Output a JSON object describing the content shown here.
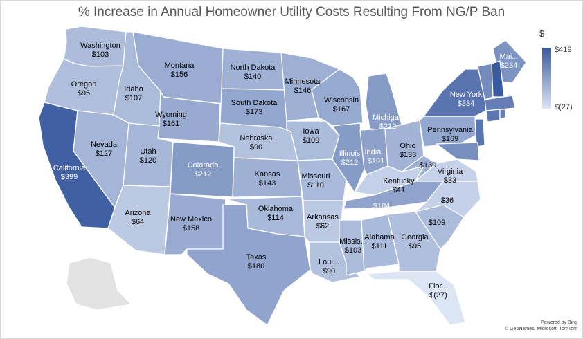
{
  "title": "% Increase in Annual Homeowner Utility Costs Resulting From NG/P Ban",
  "legend": {
    "symbol": "$",
    "max_label": "$419",
    "min_label": "$(27)"
  },
  "attribution": {
    "line1": "Powered by Bing",
    "line2": "© GeoNames, Microsoft, TomTom"
  },
  "colors": {
    "high": "#3a5a9f",
    "low": "#dce5f4",
    "no_data": "#e3e3e3",
    "border": "#ffffff"
  },
  "chart_data": {
    "type": "choropleth",
    "value_unit": "$",
    "scale_range": [
      -27,
      419
    ],
    "regions": [
      {
        "state": "Washington",
        "label": "Washington",
        "value": 103
      },
      {
        "state": "Oregon",
        "label": "Oregon",
        "value": 95
      },
      {
        "state": "California",
        "label": "California",
        "value": 399
      },
      {
        "state": "Idaho",
        "label": "Idaho",
        "value": 107
      },
      {
        "state": "Nevada",
        "label": "Nevada",
        "value": 127
      },
      {
        "state": "Montana",
        "label": "Montana",
        "value": 156
      },
      {
        "state": "Wyoming",
        "label": "Wyoming",
        "value": 161
      },
      {
        "state": "Utah",
        "label": "Utah",
        "value": 120
      },
      {
        "state": "Arizona",
        "label": "Arizona",
        "value": 64
      },
      {
        "state": "Colorado",
        "label": "Colorado",
        "value": 212
      },
      {
        "state": "New Mexico",
        "label": "New Mexico",
        "value": 158
      },
      {
        "state": "North Dakota",
        "label": "North Dakota",
        "value": 140
      },
      {
        "state": "South Dakota",
        "label": "South Dakota",
        "value": 173
      },
      {
        "state": "Nebraska",
        "label": "Nebraska",
        "value": 90
      },
      {
        "state": "Kansas",
        "label": "Kansas",
        "value": 143
      },
      {
        "state": "Oklahoma",
        "label": "Oklahoma",
        "value": 114
      },
      {
        "state": "Texas",
        "label": "Texas",
        "value": 180
      },
      {
        "state": "Minnesota",
        "label": "Minnesota",
        "value": 146
      },
      {
        "state": "Iowa",
        "label": "Iowa",
        "value": 109
      },
      {
        "state": "Missouri",
        "label": "Missouri",
        "value": 110
      },
      {
        "state": "Arkansas",
        "label": "Arkansas",
        "value": 62
      },
      {
        "state": "Louisiana",
        "label": "Loui...",
        "value": 90
      },
      {
        "state": "Wisconsin",
        "label": "Wisconsin",
        "value": 167
      },
      {
        "state": "Illinois",
        "label": "Illinois",
        "value": 212
      },
      {
        "state": "Michigan",
        "label": "Michigan",
        "value": 212
      },
      {
        "state": "Indiana",
        "label": "India...",
        "value": 191
      },
      {
        "state": "Ohio",
        "label": "Ohio",
        "value": 133
      },
      {
        "state": "Kentucky",
        "label": "Kentucky",
        "value": 41
      },
      {
        "state": "Tennessee",
        "label": "",
        "value": 184
      },
      {
        "state": "Mississippi",
        "label": "Missis...",
        "value": 103
      },
      {
        "state": "Alabama",
        "label": "Alabama",
        "value": 111
      },
      {
        "state": "Georgia",
        "label": "Georgia",
        "value": 95
      },
      {
        "state": "Florida",
        "label": "Flor...",
        "value": -27
      },
      {
        "state": "South Carolina",
        "label": "",
        "value": 109
      },
      {
        "state": "North Carolina",
        "label": "",
        "value": 36
      },
      {
        "state": "Virginia",
        "label": "Virginia",
        "value": 33
      },
      {
        "state": "West Virginia",
        "label": "",
        "value": 139
      },
      {
        "state": "Pennsylvania",
        "label": "Pennsylvania",
        "value": 169
      },
      {
        "state": "New York",
        "label": "New York",
        "value": 334
      },
      {
        "state": "Maine",
        "label": "Mai...",
        "value": 234
      }
    ]
  }
}
